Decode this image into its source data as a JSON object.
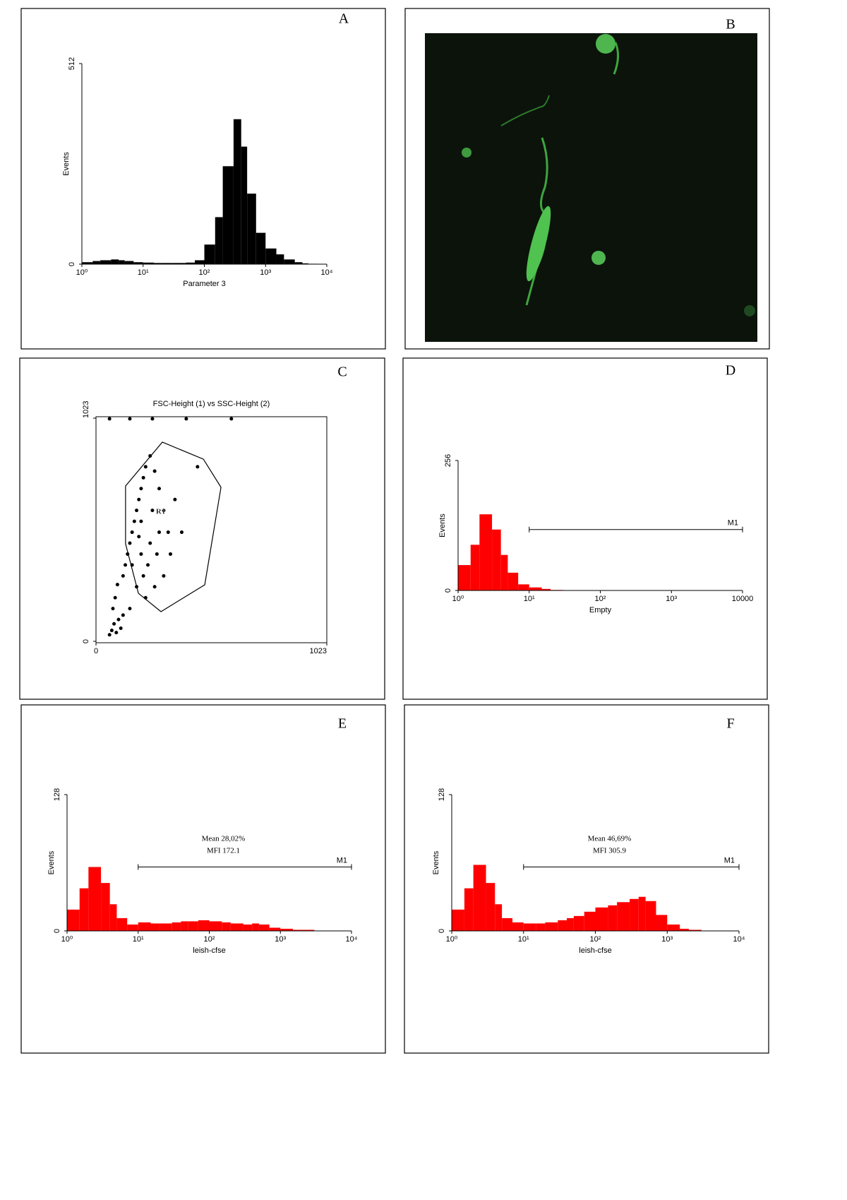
{
  "panels": [
    "A",
    "B",
    "C",
    "D",
    "E",
    "F"
  ],
  "chart_data": [
    {
      "type": "histogram",
      "xlabel": "Parameter 3",
      "ylabel": "Events",
      "xscale": "log",
      "color": "#000000",
      "bins": [
        1,
        1.5,
        2,
        3,
        4,
        5,
        7,
        10,
        15,
        20,
        30,
        40,
        50,
        70,
        100,
        150,
        200,
        300,
        400,
        500,
        700,
        1000,
        1500,
        2000,
        3000,
        4000,
        5000,
        7000,
        10000
      ],
      "counts": [
        5,
        8,
        10,
        12,
        10,
        8,
        5,
        4,
        3,
        3,
        3,
        3,
        4,
        10,
        50,
        120,
        250,
        370,
        300,
        180,
        80,
        40,
        25,
        12,
        5,
        2,
        1,
        0
      ],
      "xlim": [
        1,
        10000
      ],
      "ylim": [
        0,
        512
      ],
      "xticks": [
        {
          "value": 1,
          "label": "10⁰"
        },
        {
          "value": 10,
          "label": "10¹"
        },
        {
          "value": 100,
          "label": "10²"
        },
        {
          "value": 1000,
          "label": "10³"
        },
        {
          "value": 10000,
          "label": "10⁴"
        }
      ],
      "yticks": [
        0,
        512
      ]
    },
    {
      "type": "scatter",
      "title": "FSC-Height (1) vs SSC-Height (2)",
      "color": "#000000",
      "x": [
        60,
        70,
        80,
        90,
        100,
        110,
        75,
        85,
        95,
        120,
        130,
        140,
        150,
        160,
        170,
        180,
        190,
        200,
        210,
        220,
        240,
        260,
        280,
        300,
        320,
        330,
        300,
        260,
        220,
        180,
        160,
        200,
        240,
        280,
        200,
        250,
        230,
        270,
        190,
        210,
        150,
        120,
        350,
        380,
        450,
        60,
        150,
        250,
        400,
        600
      ],
      "y": [
        30,
        50,
        80,
        40,
        100,
        60,
        150,
        200,
        260,
        300,
        350,
        400,
        450,
        500,
        550,
        600,
        650,
        700,
        750,
        800,
        850,
        780,
        700,
        600,
        500,
        400,
        300,
        250,
        200,
        250,
        350,
        400,
        450,
        500,
        550,
        600,
        350,
        400,
        480,
        300,
        150,
        120,
        650,
        500,
        800,
        1020,
        1020,
        1020,
        1020,
        1020
      ],
      "xlim": [
        0,
        1023
      ],
      "ylim": [
        0,
        1023
      ],
      "xticks": [
        0,
        1023
      ],
      "yticks": [
        0,
        1023
      ],
      "region": {
        "label": "R1",
        "x": [
          294,
          476,
          554,
          482,
          288,
          188,
          131,
          131
        ],
        "y": [
          913,
          835,
          706,
          259,
          136,
          220,
          447,
          712
        ]
      }
    },
    {
      "type": "histogram",
      "xlabel": "Empty",
      "ylabel": "Events",
      "xscale": "log",
      "color": "#ff0000",
      "bins": [
        1,
        1.5,
        2,
        3,
        4,
        5,
        7,
        10,
        15,
        20,
        30,
        40,
        50,
        70,
        100,
        150,
        200,
        300,
        400,
        500,
        700,
        1000,
        1500,
        2000,
        3000,
        4000,
        5000,
        7000,
        10000
      ],
      "counts": [
        50,
        90,
        150,
        120,
        70,
        35,
        12,
        6,
        3,
        1,
        0,
        0,
        0,
        0,
        0,
        0,
        0,
        0,
        0,
        0,
        0,
        0,
        0,
        0,
        0,
        0,
        0,
        0
      ],
      "xlim": [
        1,
        10000
      ],
      "ylim": [
        0,
        256
      ],
      "xticks": [
        {
          "value": 1,
          "label": "10⁰"
        },
        {
          "value": 10,
          "label": "10¹"
        },
        {
          "value": 100,
          "label": "10²"
        },
        {
          "value": 1000,
          "label": "10³"
        },
        10000
      ],
      "yticks": [
        0,
        256
      ],
      "marker": {
        "label": "M1",
        "x": [
          10,
          10000
        ],
        "y": 120
      }
    },
    {
      "type": "histogram",
      "xlabel": "leish-cfse",
      "ylabel": "Events",
      "xscale": "log",
      "color": "#ff0000",
      "bins": [
        1,
        1.5,
        2,
        3,
        4,
        5,
        7,
        10,
        15,
        20,
        30,
        40,
        50,
        70,
        100,
        150,
        200,
        300,
        400,
        500,
        700,
        1000,
        1500,
        2000,
        3000,
        4000,
        5000,
        7000,
        10000
      ],
      "counts": [
        20,
        40,
        60,
        45,
        25,
        12,
        6,
        8,
        7,
        7,
        8,
        9,
        9,
        10,
        9,
        8,
        7,
        6,
        7,
        6,
        3,
        2,
        1,
        1,
        0,
        0,
        0,
        0
      ],
      "xlim": [
        1,
        10000
      ],
      "ylim": [
        0,
        128
      ],
      "xticks": [
        {
          "value": 1,
          "label": "10⁰"
        },
        {
          "value": 10,
          "label": "10¹"
        },
        {
          "value": 100,
          "label": "10²"
        },
        {
          "value": 1000,
          "label": "10³"
        },
        {
          "value": 10000,
          "label": "10⁴"
        }
      ],
      "yticks": [
        0,
        128
      ],
      "marker": {
        "label": "M1",
        "x": [
          10,
          10000
        ],
        "y": 60
      },
      "annotations": [
        "Mean 28,02%",
        "MFI 172.1"
      ]
    },
    {
      "type": "histogram",
      "xlabel": "leish-cfse",
      "ylabel": "Events",
      "xscale": "log",
      "color": "#ff0000",
      "bins": [
        1,
        1.5,
        2,
        3,
        4,
        5,
        7,
        10,
        15,
        20,
        30,
        40,
        50,
        70,
        100,
        150,
        200,
        300,
        400,
        500,
        700,
        1000,
        1500,
        2000,
        3000,
        4000,
        5000,
        7000,
        10000
      ],
      "counts": [
        20,
        40,
        62,
        45,
        25,
        12,
        8,
        7,
        7,
        8,
        10,
        12,
        14,
        18,
        22,
        24,
        27,
        30,
        32,
        28,
        15,
        6,
        2,
        1,
        0,
        0,
        0,
        0
      ],
      "xlim": [
        1,
        10000
      ],
      "ylim": [
        0,
        128
      ],
      "xticks": [
        {
          "value": 1,
          "label": "10⁰"
        },
        {
          "value": 10,
          "label": "10¹"
        },
        {
          "value": 100,
          "label": "10²"
        },
        {
          "value": 1000,
          "label": "10³"
        },
        {
          "value": 10000,
          "label": "10⁴"
        }
      ],
      "yticks": [
        0,
        128
      ],
      "marker": {
        "label": "M1",
        "x": [
          10,
          10000
        ],
        "y": 60
      },
      "annotations": [
        "Mean 46,69%",
        "MFI 305.9"
      ]
    }
  ]
}
